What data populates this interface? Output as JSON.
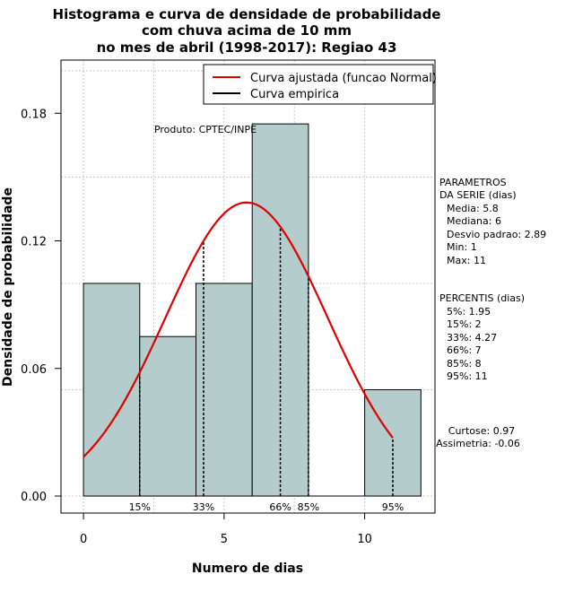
{
  "chart_data": {
    "type": "bar",
    "title_lines": [
      "Histograma e curva de densidade de probabilidade",
      "com chuva acima de 10 mm",
      "no mes de abril (1998-2017): Regiao 43"
    ],
    "xlabel": "Numero de dias",
    "ylabel": "Densidade de probabilidade",
    "xlim": [
      -0.8,
      12.5
    ],
    "ylim": [
      -0.008,
      0.205
    ],
    "xticks": [
      0,
      5,
      10
    ],
    "yticks": [
      0.0,
      0.06,
      0.12,
      0.18
    ],
    "ytick_labels": [
      "0.00",
      "0.06",
      "0.12",
      "0.18"
    ],
    "grid": true,
    "bar_color": "#b5cccc",
    "bins": [
      {
        "x0": 0,
        "x1": 2,
        "density": 0.1
      },
      {
        "x0": 2,
        "x1": 4,
        "density": 0.075
      },
      {
        "x0": 4,
        "x1": 6,
        "density": 0.1
      },
      {
        "x0": 6,
        "x1": 8,
        "density": 0.175
      },
      {
        "x0": 8,
        "x1": 10,
        "density": 0.0
      },
      {
        "x0": 10,
        "x1": 12,
        "density": 0.05
      }
    ],
    "normal_curve": {
      "mean": 5.8,
      "sd": 2.89,
      "x_from": 0,
      "x_to": 11,
      "color": "#e00000"
    },
    "legend": {
      "position": "top-right",
      "entries": [
        {
          "label": "Curva ajustada (funcao Normal)",
          "color": "#e00000"
        },
        {
          "label": "Curva empirica",
          "color": "#000000"
        }
      ]
    },
    "percentile_lines": [
      {
        "label": "15%",
        "x": 2
      },
      {
        "label": "33%",
        "x": 4.27
      },
      {
        "label": "66%",
        "x": 7
      },
      {
        "label": "85%",
        "x": 8
      },
      {
        "label": "95%",
        "x": 11
      }
    ],
    "annotation": "Produto: CPTEC/INPE",
    "parametros": {
      "header": [
        "PARAMETROS",
        "DA SERIE (dias)"
      ],
      "lines": [
        "Media: 5.8",
        "Mediana: 6",
        "Desvio padrao: 2.89",
        "Min: 1",
        "Max: 11"
      ]
    },
    "percentis": {
      "header": "PERCENTIS (dias)",
      "lines": [
        "5%: 1.95",
        "15%: 2",
        "33%: 4.27",
        "66%: 7",
        "85%: 8",
        "95%: 11"
      ]
    },
    "shape": {
      "lines": [
        "Curtose: 0.97",
        "Assimetria: -0.06"
      ]
    }
  }
}
